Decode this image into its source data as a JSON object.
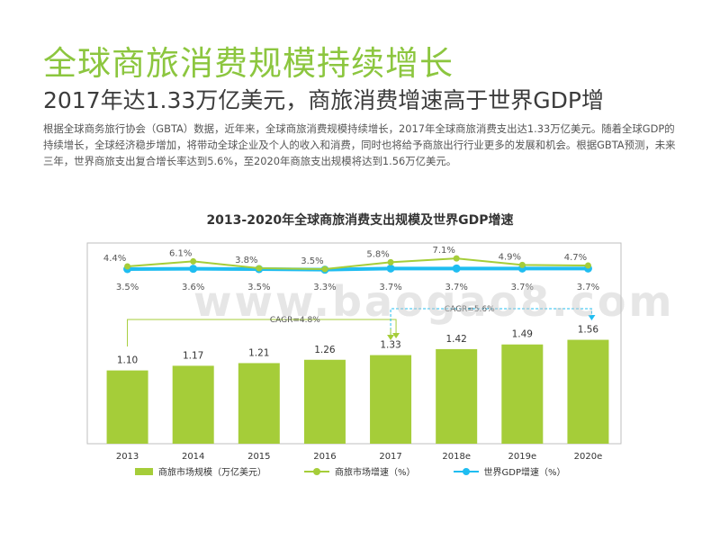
{
  "header": {
    "title": "全球商旅消费规模持续增长",
    "subtitle": "2017年达1.33万亿美元，商旅消费增速高于世界GDP增"
  },
  "body": {
    "paragraph": "根据全球商务旅行协会（GBTA）数据，近年来，全球商旅消费规模持续增长，2017年全球商旅消费支出达1.33万亿美元。随着全球GDP的持续增长，全球经济稳步增加，将带动全球企业及个人的收入和消费，同时也将给予商旅出行行业更多的发展和机会。根据GBTA预测，未来三年，世界商旅支出复合增长率达到5.6%，至2020年商旅支出规模将达到1.56万亿美元。"
  },
  "watermark": "www.baogao8.com",
  "chart_data": {
    "type": "bar",
    "title": "2013-2020年全球商旅消费支出规模及世界GDP增速",
    "categories": [
      "2013",
      "2014",
      "2015",
      "2016",
      "2017",
      "2018e",
      "2019e",
      "2020e"
    ],
    "series": [
      {
        "name": "商旅市场规模（万亿美元）",
        "type": "bar",
        "values": [
          1.1,
          1.17,
          1.21,
          1.26,
          1.33,
          1.42,
          1.49,
          1.56
        ],
        "labels": [
          "1.10",
          "1.17",
          "1.21",
          "1.26",
          "1.33",
          "1.42",
          "1.49",
          "1.56"
        ]
      },
      {
        "name": "商旅市场增速（%）",
        "type": "line",
        "values": [
          4.4,
          6.1,
          3.8,
          3.5,
          5.8,
          7.1,
          4.9,
          4.7
        ],
        "labels": [
          "4.4%",
          "6.1%",
          "3.8%",
          "3.5%",
          "5.8%",
          "7.1%",
          "4.9%",
          "4.7%"
        ]
      },
      {
        "name": "世界GDP增速（%）",
        "type": "line",
        "values": [
          3.5,
          3.6,
          3.5,
          3.3,
          3.7,
          3.7,
          3.7,
          3.7
        ],
        "labels": [
          "3.5%",
          "3.6%",
          "3.5%",
          "3.3%",
          "3.7%",
          "3.7%",
          "3.7%",
          "3.7%"
        ]
      }
    ],
    "annotations": [
      {
        "text": "CAGR=4.8%",
        "from": "2013",
        "to": "2017"
      },
      {
        "text": "CAGR=5.6%",
        "from": "2017",
        "to": "2020e"
      }
    ],
    "colors": {
      "bar": "#a5cd39",
      "growth": "#a5cd39",
      "gdp": "#1fbdf1",
      "axis": "#bfbfbf",
      "cagr1": "#a5cd39",
      "cagr2": "#1fbdf1"
    },
    "legend_position": "bottom",
    "grid": false
  }
}
